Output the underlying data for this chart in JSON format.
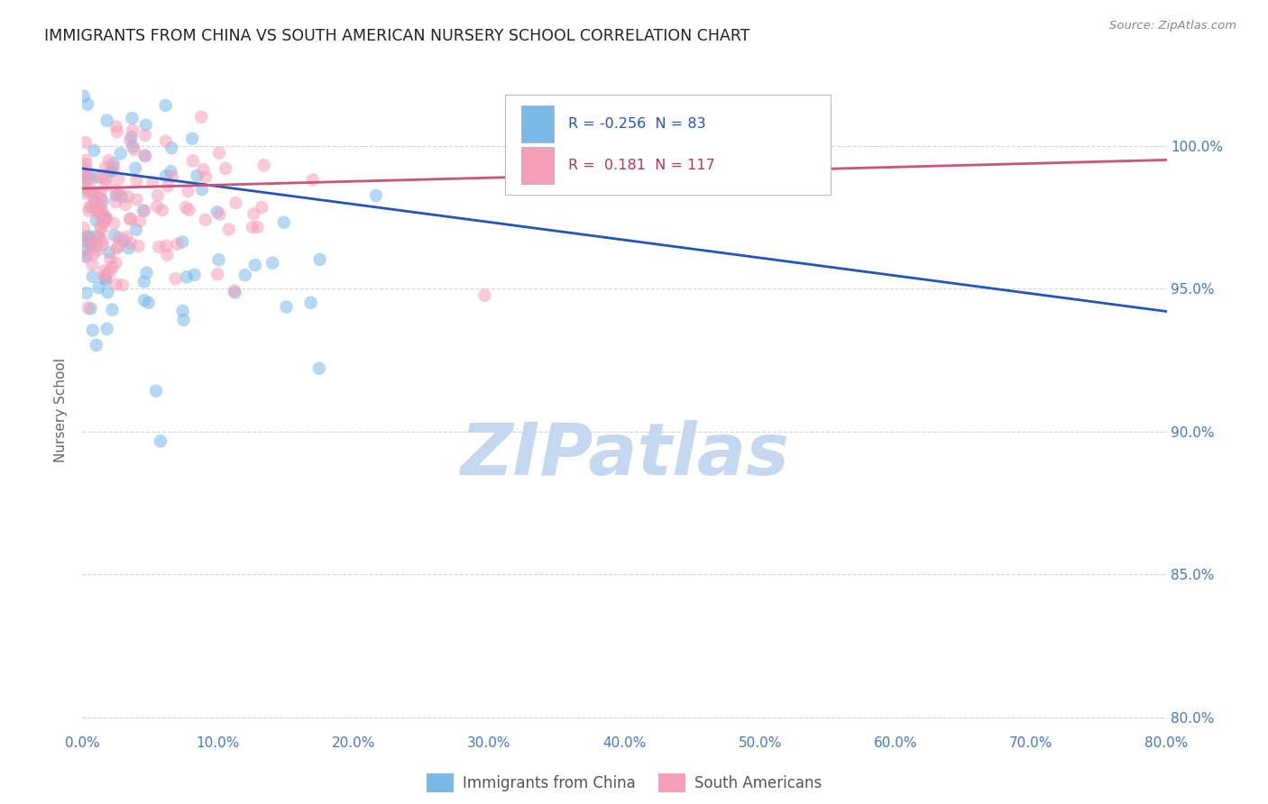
{
  "title": "IMMIGRANTS FROM CHINA VS SOUTH AMERICAN NURSERY SCHOOL CORRELATION CHART",
  "source": "Source: ZipAtlas.com",
  "ylabel": "Nursery School",
  "xlim": [
    0.0,
    80.0
  ],
  "ylim": [
    79.5,
    102.0
  ],
  "yticks": [
    80.0,
    85.0,
    90.0,
    95.0,
    100.0
  ],
  "xticks": [
    0.0,
    10.0,
    20.0,
    30.0,
    40.0,
    50.0,
    60.0,
    70.0,
    80.0
  ],
  "legend_labels": [
    "Immigrants from China",
    "South Americans"
  ],
  "china_R": -0.256,
  "china_N": 83,
  "sa_R": 0.181,
  "sa_N": 117,
  "china_color": "#7ab8e8",
  "sa_color": "#f5a0b8",
  "china_line_color": "#2255bb",
  "sa_line_color": "#cc5577",
  "watermark_text": "ZIPatlas",
  "watermark_color": "#c5d8ef",
  "background_color": "#ffffff",
  "grid_color": "#d0d0d0",
  "title_color": "#222222",
  "tick_color": "#4477cc",
  "ylabel_color": "#666666",
  "source_color": "#888888",
  "legend_text_china_color": "#2255bb",
  "legend_text_sa_color": "#bb3355",
  "bottom_legend_text_color": "#555555",
  "china_line_y0": 99.2,
  "china_line_y1": 94.2,
  "sa_line_y0": 98.5,
  "sa_line_y1": 99.5
}
